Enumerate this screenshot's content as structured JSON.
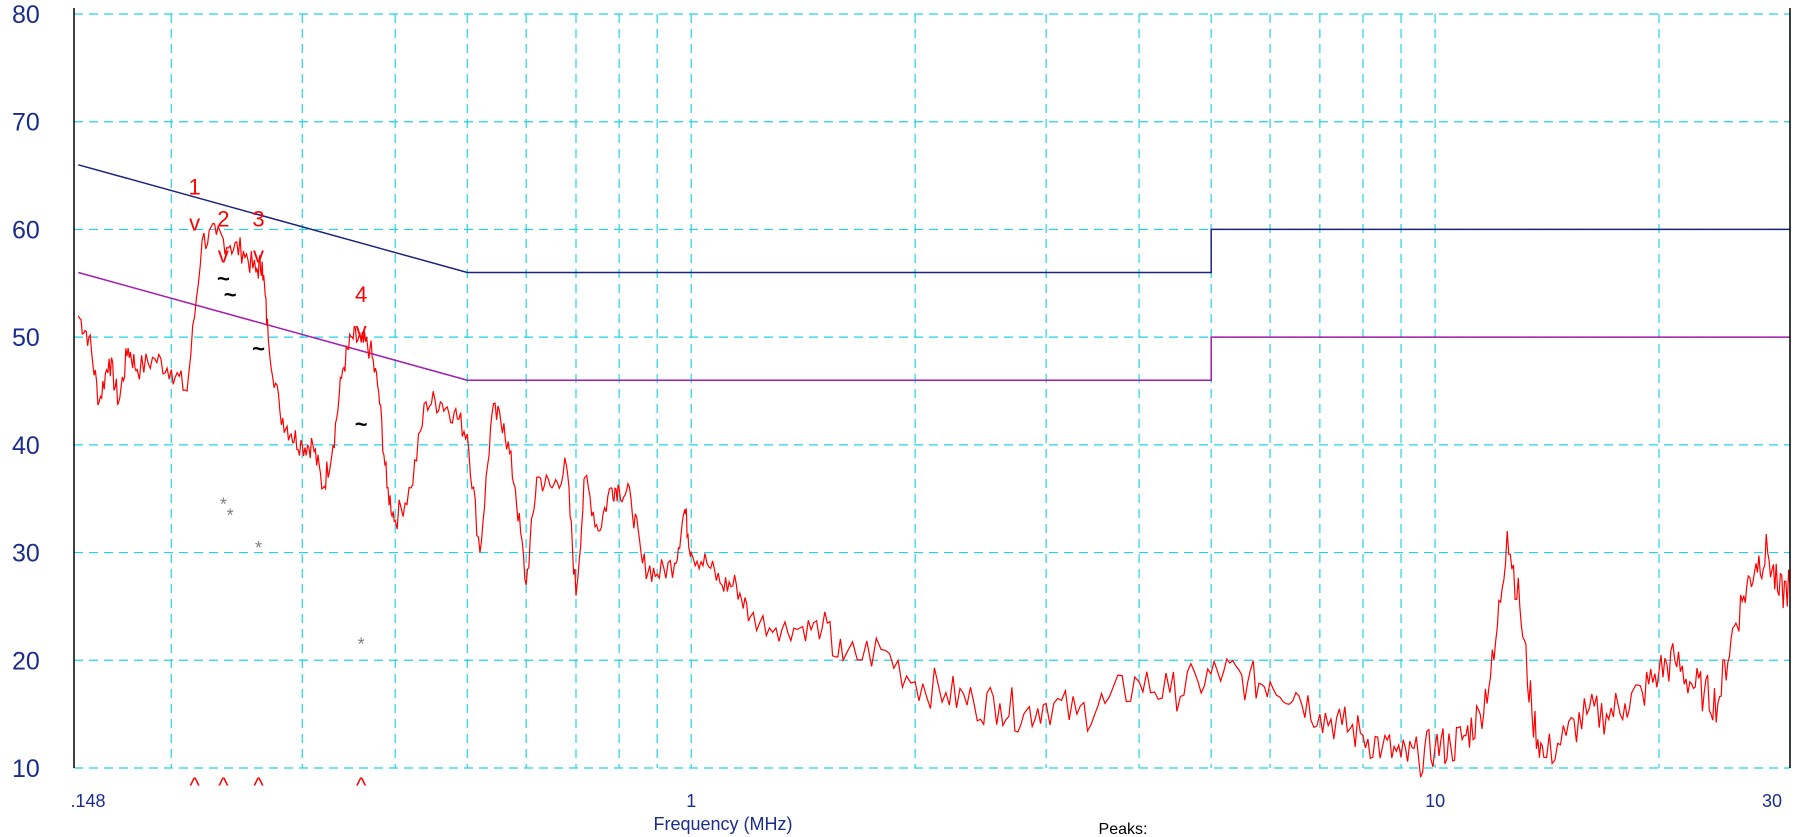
{
  "chart_data": {
    "type": "line",
    "title": "",
    "xlabel": "Frequency (MHz)",
    "ylabel": "",
    "xscale": "log",
    "xlim": [
      0.148,
      30
    ],
    "ylim": [
      10,
      80
    ],
    "grid": true,
    "x_tick_labels": [
      ".148",
      "1",
      "10",
      "30"
    ],
    "x_tick_values": [
      0.148,
      1,
      10,
      30
    ],
    "y_ticks": [
      10,
      20,
      30,
      40,
      50,
      60,
      70,
      80
    ],
    "footer_label": "Peaks:",
    "colors": {
      "axis_text": "#1a2c8c",
      "grid": "#22d3e6",
      "trace": "#ff0000",
      "limit_qp": "#1a237e",
      "limit_avg": "#a21caf",
      "markers": "#ff0000",
      "qp_marks": "#000000",
      "avg_marks": "#808080"
    },
    "limit_lines": [
      {
        "id": "qp_limit",
        "points": [
          [
            0.15,
            66
          ],
          [
            0.5,
            56
          ],
          [
            5,
            56
          ],
          [
            5,
            60
          ],
          [
            30,
            60
          ]
        ]
      },
      {
        "id": "avg_limit",
        "points": [
          [
            0.15,
            56
          ],
          [
            0.5,
            46
          ],
          [
            5,
            46
          ],
          [
            5,
            50
          ],
          [
            30,
            50
          ]
        ]
      }
    ],
    "series": [
      {
        "id": "peak_scan",
        "points": [
          [
            0.15,
            52
          ],
          [
            0.155,
            50
          ],
          [
            0.16,
            44
          ],
          [
            0.165,
            48
          ],
          [
            0.17,
            44
          ],
          [
            0.175,
            49
          ],
          [
            0.18,
            47
          ],
          [
            0.19,
            48
          ],
          [
            0.2,
            47
          ],
          [
            0.21,
            45
          ],
          [
            0.22,
            59
          ],
          [
            0.23,
            59.5
          ],
          [
            0.24,
            58.5
          ],
          [
            0.25,
            58
          ],
          [
            0.26,
            56
          ],
          [
            0.265,
            57
          ],
          [
            0.27,
            50
          ],
          [
            0.28,
            43
          ],
          [
            0.29,
            41
          ],
          [
            0.3,
            40
          ],
          [
            0.31,
            40
          ],
          [
            0.32,
            36
          ],
          [
            0.33,
            40
          ],
          [
            0.34,
            47
          ],
          [
            0.35,
            50
          ],
          [
            0.36,
            49.5
          ],
          [
            0.37,
            49
          ],
          [
            0.38,
            45
          ],
          [
            0.39,
            36
          ],
          [
            0.4,
            33
          ],
          [
            0.42,
            36
          ],
          [
            0.44,
            44
          ],
          [
            0.46,
            44
          ],
          [
            0.48,
            43
          ],
          [
            0.5,
            41
          ],
          [
            0.52,
            30
          ],
          [
            0.54,
            43
          ],
          [
            0.56,
            42
          ],
          [
            0.58,
            36
          ],
          [
            0.6,
            27
          ],
          [
            0.62,
            37
          ],
          [
            0.65,
            36
          ],
          [
            0.68,
            38
          ],
          [
            0.7,
            26
          ],
          [
            0.72,
            37
          ],
          [
            0.75,
            32
          ],
          [
            0.78,
            36
          ],
          [
            0.8,
            36
          ],
          [
            0.83,
            35
          ],
          [
            0.86,
            29
          ],
          [
            0.9,
            28
          ],
          [
            0.95,
            29
          ],
          [
            0.98,
            34
          ],
          [
            1.0,
            30
          ],
          [
            1.05,
            29
          ],
          [
            1.1,
            27
          ],
          [
            1.15,
            27
          ],
          [
            1.2,
            24
          ],
          [
            1.3,
            23
          ],
          [
            1.4,
            23
          ],
          [
            1.5,
            23
          ],
          [
            1.6,
            20
          ],
          [
            1.8,
            21
          ],
          [
            2.0,
            18
          ],
          [
            2.2,
            17
          ],
          [
            2.4,
            16
          ],
          [
            2.6,
            16
          ],
          [
            2.8,
            15
          ],
          [
            3.0,
            16
          ],
          [
            3.3,
            15
          ],
          [
            3.6,
            16
          ],
          [
            4.0,
            18
          ],
          [
            4.4,
            17
          ],
          [
            4.8,
            18
          ],
          [
            5.2,
            19
          ],
          [
            5.6,
            18
          ],
          [
            6.0,
            18
          ],
          [
            6.5,
            17
          ],
          [
            7.0,
            15
          ],
          [
            7.5,
            14
          ],
          [
            8.0,
            13
          ],
          [
            8.5,
            12
          ],
          [
            9.0,
            11
          ],
          [
            9.5,
            11
          ],
          [
            10.0,
            12
          ],
          [
            10.5,
            12
          ],
          [
            11.0,
            13
          ],
          [
            11.5,
            15
          ],
          [
            12.0,
            20
          ],
          [
            12.5,
            32
          ],
          [
            13.0,
            25
          ],
          [
            13.5,
            15
          ],
          [
            14.0,
            11
          ],
          [
            15.0,
            13
          ],
          [
            16.0,
            15
          ],
          [
            17.0,
            15
          ],
          [
            18.0,
            16
          ],
          [
            19.0,
            17
          ],
          [
            20.0,
            19
          ],
          [
            21.0,
            20
          ],
          [
            22.0,
            18
          ],
          [
            23.0,
            17
          ],
          [
            24.0,
            16
          ],
          [
            25.0,
            22
          ],
          [
            26.0,
            26
          ],
          [
            27.0,
            29
          ],
          [
            28.0,
            30
          ],
          [
            29.0,
            26
          ],
          [
            30.0,
            27
          ]
        ]
      }
    ],
    "markers": [
      {
        "label": "1",
        "x": 0.215,
        "y": 64
      },
      {
        "label": "2",
        "x": 0.235,
        "y": 61
      },
      {
        "label": "3",
        "x": 0.262,
        "y": 61
      },
      {
        "label": "4",
        "x": 0.36,
        "y": 54
      }
    ],
    "marker_symbols": {
      "peak": "v",
      "qp": "~",
      "avg": "*",
      "axis": "^"
    },
    "qp_readings": [
      {
        "x": 0.235,
        "y": 55.5
      },
      {
        "x": 0.24,
        "y": 54
      },
      {
        "x": 0.262,
        "y": 49
      },
      {
        "x": 0.36,
        "y": 42
      }
    ],
    "avg_readings": [
      {
        "x": 0.235,
        "y": 35
      },
      {
        "x": 0.24,
        "y": 34
      },
      {
        "x": 0.262,
        "y": 31
      },
      {
        "x": 0.36,
        "y": 22
      }
    ]
  }
}
